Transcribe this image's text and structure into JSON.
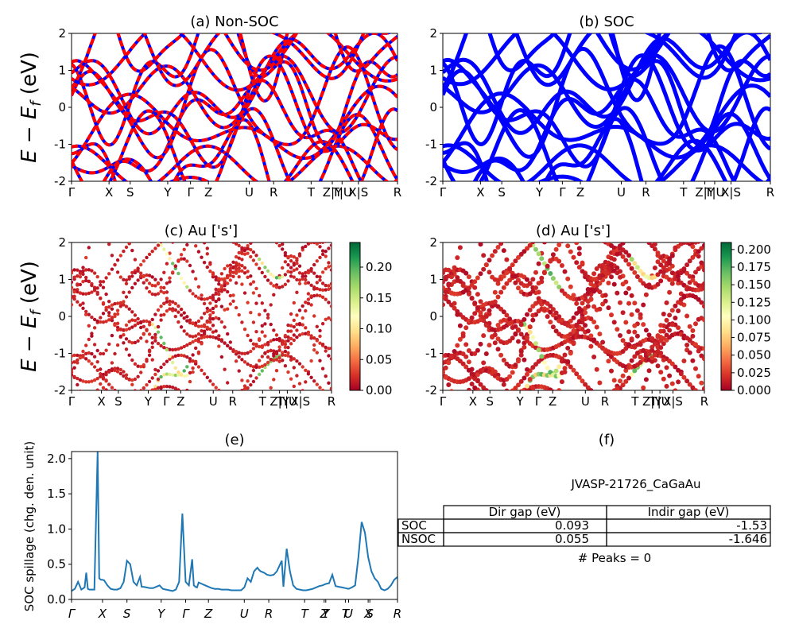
{
  "bands_k_labels": [
    "Γ",
    "X",
    "S",
    "Y",
    "Γ",
    "Z",
    "U",
    "R",
    "T",
    "Z|Y",
    "T|U",
    "X|S",
    "R"
  ],
  "chart_data": [
    {
      "type": "line",
      "title": "(a) Non-SOC",
      "ylabel": "E − E_f (eV)",
      "ylim": [
        -2,
        2
      ],
      "yticks": [
        -2,
        -1,
        0,
        1,
        2
      ],
      "xticks": [
        "Γ",
        "X",
        "S",
        "Y",
        "Γ",
        "Z",
        "U",
        "R",
        "T",
        "Z|Y",
        "T|U",
        "X|S",
        "R"
      ],
      "series": [
        {
          "color": "#0000ff",
          "style": "solid"
        },
        {
          "color": "#ff0000",
          "style": "dashed"
        }
      ],
      "note_colors": {
        "spin_up": "#0000ff",
        "spin_down": "#ff0000"
      }
    },
    {
      "type": "line",
      "title": "(b) SOC",
      "ylim": [
        -2,
        2
      ],
      "yticks": [
        -2,
        -1,
        0,
        1,
        2
      ],
      "xticks": [
        "Γ",
        "X",
        "S",
        "Y",
        "Γ",
        "Z",
        "U",
        "R",
        "T",
        "Z|Y",
        "T|U",
        "X|S",
        "R"
      ],
      "series": [
        {
          "color": "#0000ff",
          "style": "thick"
        }
      ]
    },
    {
      "type": "scatter",
      "title": "(c)  Au ['s']",
      "ylabel": "E − E_f (eV)",
      "ylim": [
        -2,
        2
      ],
      "yticks": [
        -2,
        -1,
        0,
        1,
        2
      ],
      "xticks": [
        "Γ",
        "X",
        "S",
        "Y",
        "Γ",
        "Z",
        "U",
        "R",
        "T",
        "Z|Y",
        "T|U",
        "X|S",
        "R"
      ],
      "colorbar": {
        "cmap": "RdYlGn",
        "range": [
          0,
          0.24
        ],
        "ticks": [
          "0.00",
          "0.05",
          "0.10",
          "0.15",
          "0.20"
        ]
      }
    },
    {
      "type": "scatter",
      "title": "(d) Au ['s']",
      "ylim": [
        -2,
        2
      ],
      "yticks": [
        -2,
        -1,
        0,
        1,
        2
      ],
      "xticks": [
        "Γ",
        "X",
        "S",
        "Y",
        "Γ",
        "Z",
        "U",
        "R",
        "T",
        "Z|Y",
        "T|U",
        "X|S",
        "R"
      ],
      "colorbar": {
        "cmap": "RdYlGn",
        "range": [
          0,
          0.21
        ],
        "ticks": [
          "0.000",
          "0.025",
          "0.050",
          "0.075",
          "0.100",
          "0.125",
          "0.150",
          "0.175",
          "0.200"
        ]
      }
    },
    {
      "type": "line",
      "title": "(e)",
      "ylabel": "SOC spillage (chg. den. unit)",
      "ylim": [
        0,
        2.1
      ],
      "yticks": [
        "0.0",
        "0.5",
        "1.0",
        "1.5",
        "2.0"
      ],
      "xticks": [
        "Γ",
        "X",
        "S",
        "Y",
        "Γ",
        "Z",
        "U",
        "R",
        "T",
        "Z",
        "Y",
        "T",
        "U",
        "X",
        "S",
        "R"
      ],
      "series": [
        {
          "color": "#1f77b4",
          "x": [
            0,
            0.01,
            0.02,
            0.03,
            0.04,
            0.045,
            0.05,
            0.055,
            0.06,
            0.07,
            0.08,
            0.085,
            0.09,
            0.095,
            0.1,
            0.11,
            0.12,
            0.13,
            0.14,
            0.15,
            0.16,
            0.17,
            0.18,
            0.19,
            0.2,
            0.21,
            0.215,
            0.22,
            0.23,
            0.24,
            0.25,
            0.26,
            0.27,
            0.28,
            0.29,
            0.3,
            0.31,
            0.32,
            0.33,
            0.34,
            0.35,
            0.36,
            0.37,
            0.375,
            0.38,
            0.385,
            0.39,
            0.4,
            0.41,
            0.42,
            0.43,
            0.44,
            0.45,
            0.46,
            0.47,
            0.48,
            0.49,
            0.5,
            0.51,
            0.52,
            0.53,
            0.54,
            0.55,
            0.56,
            0.57,
            0.575,
            0.58,
            0.59,
            0.6,
            0.61,
            0.62,
            0.63,
            0.64,
            0.645,
            0.65,
            0.66,
            0.67,
            0.68,
            0.69,
            0.7,
            0.71,
            0.72,
            0.73,
            0.74,
            0.75,
            0.76,
            0.77,
            0.78,
            0.79,
            0.8,
            0.81,
            0.82,
            0.83,
            0.84,
            0.85,
            0.86,
            0.87,
            0.88,
            0.89,
            0.9,
            0.91,
            0.92,
            0.93,
            0.94,
            0.95,
            0.96,
            0.97,
            0.98,
            0.99,
            1.0
          ],
          "y": [
            0.12,
            0.15,
            0.25,
            0.14,
            0.17,
            0.38,
            0.15,
            0.14,
            0.14,
            0.14,
            2.1,
            0.3,
            0.28,
            0.28,
            0.27,
            0.2,
            0.15,
            0.14,
            0.14,
            0.16,
            0.25,
            0.55,
            0.5,
            0.25,
            0.2,
            0.32,
            0.18,
            0.18,
            0.17,
            0.16,
            0.16,
            0.18,
            0.2,
            0.15,
            0.14,
            0.13,
            0.12,
            0.14,
            0.25,
            1.22,
            0.25,
            0.2,
            0.57,
            0.2,
            0.18,
            0.17,
            0.24,
            0.22,
            0.2,
            0.18,
            0.16,
            0.15,
            0.15,
            0.14,
            0.14,
            0.14,
            0.13,
            0.13,
            0.13,
            0.13,
            0.17,
            0.3,
            0.25,
            0.4,
            0.45,
            0.42,
            0.4,
            0.38,
            0.35,
            0.34,
            0.35,
            0.4,
            0.5,
            0.55,
            0.18,
            0.72,
            0.4,
            0.2,
            0.15,
            0.14,
            0.13,
            0.13,
            0.14,
            0.15,
            0.17,
            0.19,
            0.2,
            0.22,
            0.23,
            0.35,
            0.19,
            0.18,
            0.17,
            0.16,
            0.15,
            0.17,
            0.2,
            0.6,
            1.1,
            0.95,
            0.6,
            0.4,
            0.3,
            0.25,
            0.15,
            0.13,
            0.15,
            0.2,
            0.28,
            0.32
          ]
        }
      ]
    },
    {
      "type": "table",
      "title": "(f)",
      "caption": "JVASP-21726_CaGaAu",
      "columns": [
        "",
        "Dir gap (eV)",
        "Indir gap (eV)"
      ],
      "rows": [
        [
          "SOC",
          "0.093",
          "-1.53"
        ],
        [
          "NSOC",
          "0.055",
          "-1.646"
        ]
      ],
      "footer": "# Peaks = 0"
    }
  ],
  "labels": {
    "title_a": "(a) Non-SOC",
    "title_b": "(b) SOC",
    "title_c": "(c)  Au ['s']",
    "title_d": "(d) Au ['s']",
    "title_e": "(e)",
    "title_f": "(f)",
    "ylabel_bands": "E − E",
    "ylabel_bands_sub": "f",
    "ylabel_bands_unit": " (eV)",
    "ylabel_e": "SOC spillage (chg. den. unit)",
    "table_caption": "JVASP-21726_CaGaAu",
    "table_head_dir": "Dir gap (eV)",
    "table_head_indir": "Indir gap (eV)",
    "row_soc_label": "SOC",
    "row_soc_dir": "0.093",
    "row_soc_indir": "-1.53",
    "row_nsoc_label": "NSOC",
    "row_nsoc_dir": "0.055",
    "row_nsoc_indir": "-1.646",
    "peaks": "# Peaks = 0"
  }
}
